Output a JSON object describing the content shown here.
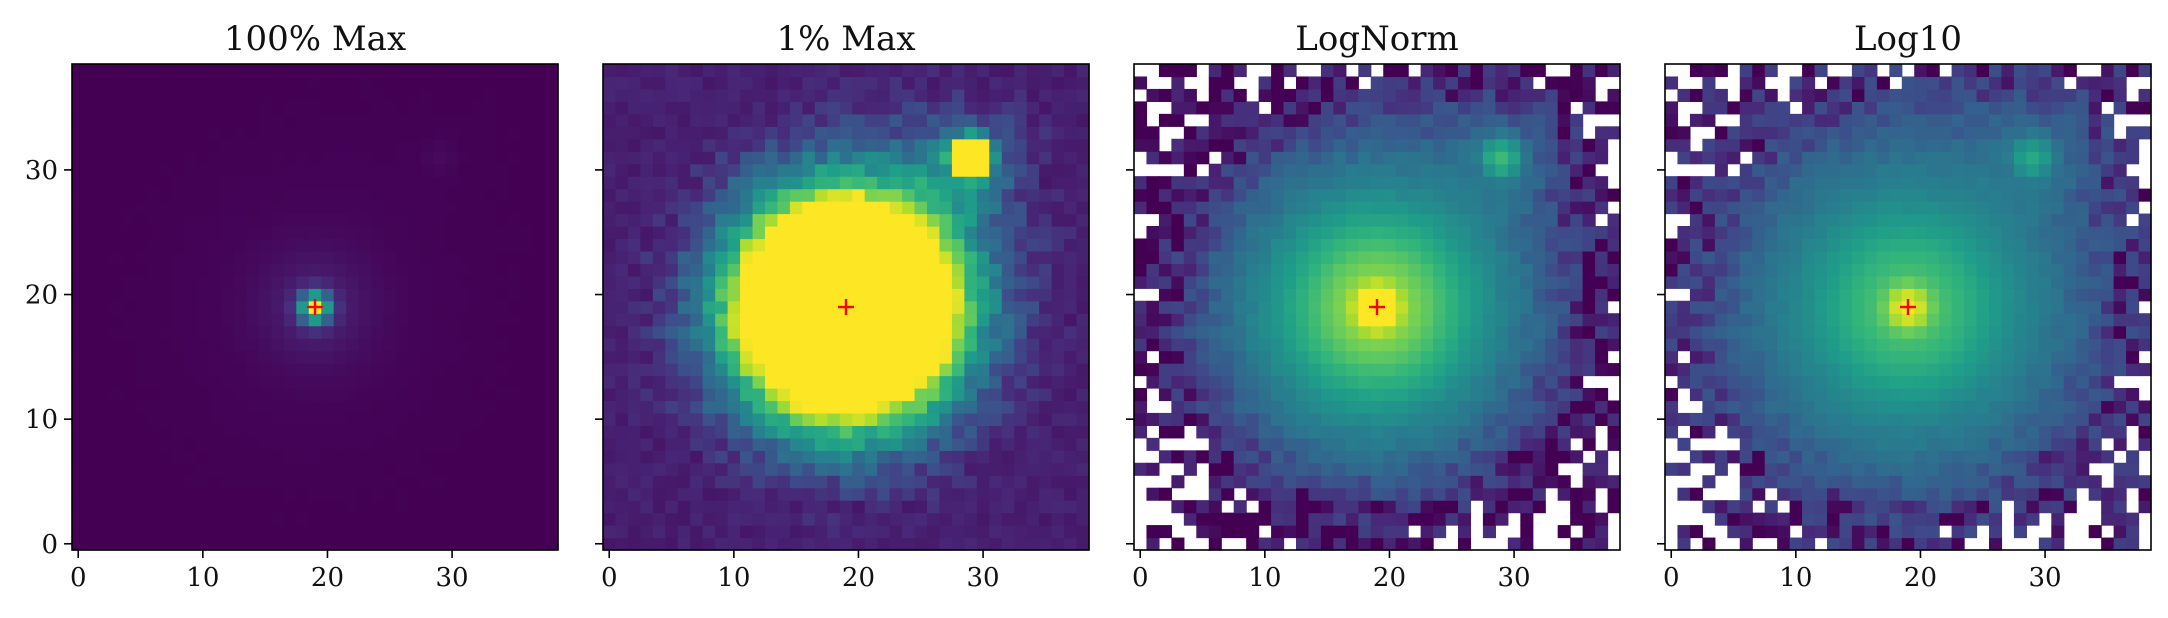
{
  "figure": {
    "type": "image-panels",
    "colormap": "viridis",
    "grid": false,
    "marker": {
      "x": 19,
      "y": 19,
      "symbol": "+",
      "color": "#ff0000"
    }
  },
  "chart_data": [
    {
      "type": "heatmap",
      "title": "100% Max",
      "xlim": [
        -0.5,
        38.5
      ],
      "ylim": [
        -0.5,
        38.5
      ],
      "xticks": [
        0,
        10,
        20,
        30
      ],
      "yticks": [
        0,
        10,
        20,
        30
      ],
      "sources": [
        {
          "x": 19,
          "y": 19,
          "peak": 1.0
        },
        {
          "x": 29,
          "y": 31,
          "peak": 0.03
        }
      ],
      "show_ytick_labels": true
    },
    {
      "type": "heatmap",
      "title": "1% Max",
      "xlim": [
        -0.5,
        38.5
      ],
      "ylim": [
        -0.5,
        38.5
      ],
      "xticks": [
        0,
        10,
        20,
        30
      ],
      "yticks": [
        0,
        10,
        20,
        30
      ],
      "display_max_fraction": 0.01,
      "sources": [
        {
          "x": 19,
          "y": 19,
          "peak": 1.0
        },
        {
          "x": 29,
          "y": 31,
          "peak": 0.03
        }
      ],
      "show_ytick_labels": false
    },
    {
      "type": "heatmap",
      "title": "LogNorm",
      "xlim": [
        -0.5,
        38.5
      ],
      "ylim": [
        -0.5,
        38.5
      ],
      "xticks": [
        0,
        10,
        20,
        30
      ],
      "yticks": [
        0,
        10,
        20,
        30
      ],
      "scale": "log",
      "non_positive": "blank",
      "sources": [
        {
          "x": 19,
          "y": 19,
          "peak": 1.0
        },
        {
          "x": 29,
          "y": 31,
          "peak": 0.03
        }
      ],
      "show_ytick_labels": false
    },
    {
      "type": "heatmap",
      "title": "Log10",
      "xlim": [
        -0.5,
        38.5
      ],
      "ylim": [
        -0.5,
        38.5
      ],
      "xticks": [
        0,
        10,
        20,
        30
      ],
      "yticks": [
        0,
        10,
        20,
        30
      ],
      "scale": "log10",
      "non_positive": "blank",
      "sources": [
        {
          "x": 19,
          "y": 19,
          "peak": 1.0
        },
        {
          "x": 29,
          "y": 31,
          "peak": 0.03
        }
      ],
      "show_ytick_labels": false
    }
  ]
}
